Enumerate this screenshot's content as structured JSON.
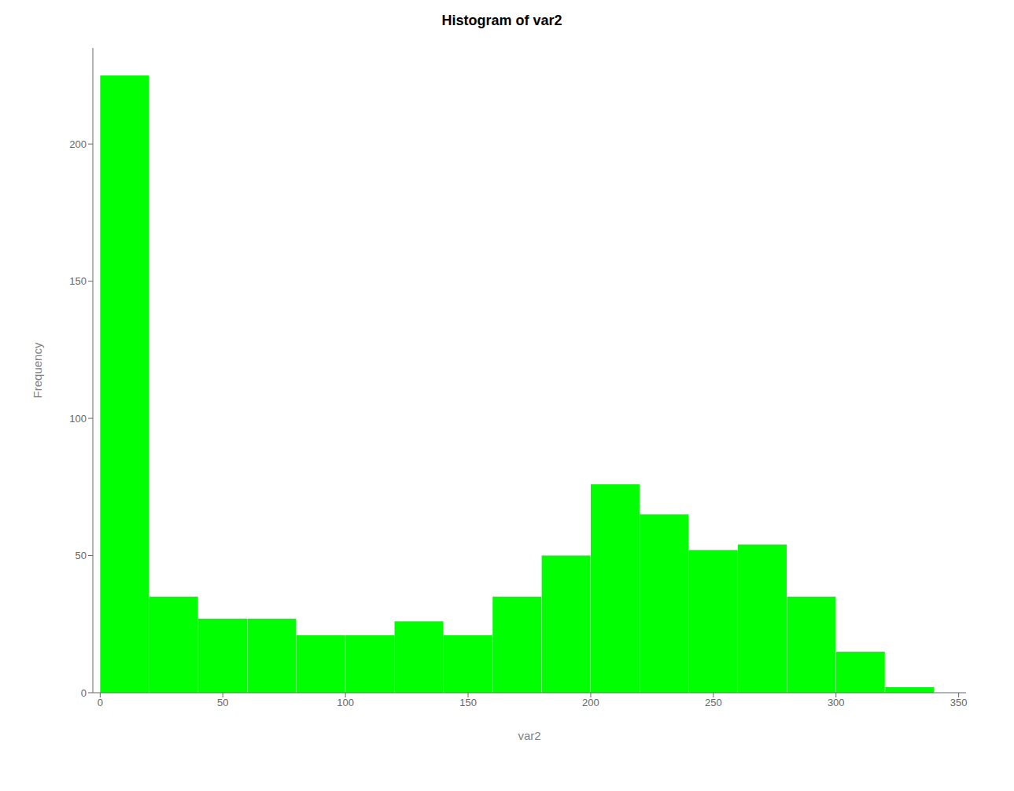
{
  "chart_data": {
    "type": "histogram",
    "title": "Histogram of var2",
    "xlabel": "var2",
    "ylabel": "Frequency",
    "bins": [
      0,
      20,
      40,
      60,
      80,
      100,
      120,
      140,
      160,
      180,
      200,
      220,
      240,
      260,
      280,
      300,
      320,
      340
    ],
    "values": [
      225,
      35,
      27,
      27,
      21,
      21,
      26,
      21,
      35,
      50,
      76,
      65,
      52,
      54,
      35,
      15,
      2
    ],
    "color": "#00FF00",
    "xlim": [
      -3,
      353
    ],
    "xticks": [
      0,
      50,
      100,
      150,
      200,
      250,
      300,
      350
    ],
    "ylim": [
      0,
      235
    ],
    "yticks": [
      0,
      50,
      100,
      150,
      200
    ],
    "grid": false
  }
}
